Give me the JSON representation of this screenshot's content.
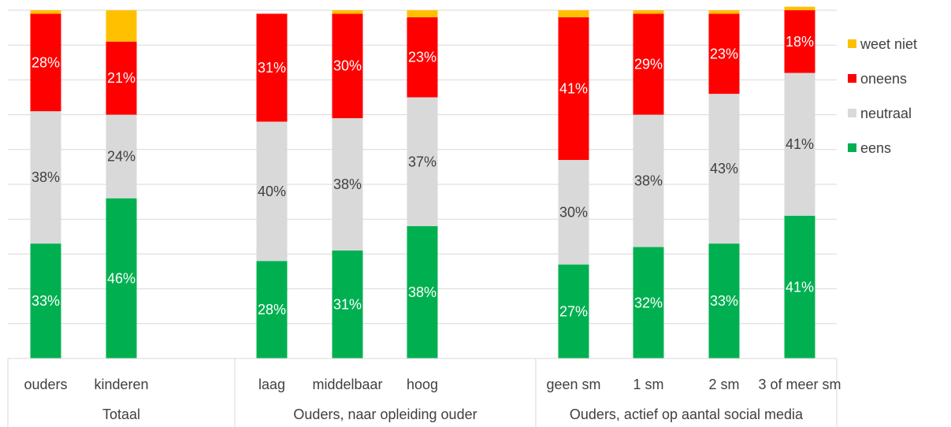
{
  "chart_data": {
    "type": "stacked-bar",
    "orientation": "vertical",
    "stacking": "percent",
    "gridlines": true,
    "legend_position": "right",
    "groups": [
      {
        "label": "Totaal",
        "categories": [
          "ouders",
          "kinderen"
        ]
      },
      {
        "label": "Ouders, naar opleiding ouder",
        "categories": [
          "laag",
          "middelbaar",
          "hoog"
        ]
      },
      {
        "label": "Ouders, actief op aantal social media",
        "categories": [
          "geen sm",
          "1 sm",
          "2 sm",
          "3 of meer sm"
        ]
      }
    ],
    "categories": [
      "ouders",
      "kinderen",
      "laag",
      "middelbaar",
      "hoog",
      "geen sm",
      "1 sm",
      "2 sm",
      "3 of meer sm"
    ],
    "series": [
      {
        "name": "eens",
        "color": "#00b050",
        "label_color": "#ffffff",
        "values": [
          33,
          46,
          28,
          31,
          38,
          27,
          32,
          33,
          41
        ]
      },
      {
        "name": "neutraal",
        "color": "#d9d9d9",
        "label_color": "#404040",
        "values": [
          38,
          24,
          40,
          38,
          37,
          30,
          38,
          43,
          41
        ]
      },
      {
        "name": "oneens",
        "color": "#ff0000",
        "label_color": "#ffffff",
        "values": [
          28,
          21,
          31,
          30,
          23,
          41,
          29,
          23,
          18
        ]
      },
      {
        "name": "weet niet",
        "color": "#ffc000",
        "label_color": "#404040",
        "values": [
          1,
          9,
          0,
          1,
          2,
          2,
          1,
          1,
          1
        ]
      }
    ],
    "labels": {
      "eens": [
        "33%",
        "46%",
        "28%",
        "31%",
        "38%",
        "27%",
        "32%",
        "33%",
        "41%"
      ],
      "neutraal": [
        "38%",
        "24%",
        "40%",
        "38%",
        "37%",
        "30%",
        "38%",
        "43%",
        "41%"
      ],
      "oneens": [
        "28%",
        "21%",
        "31%",
        "30%",
        "23%",
        "41%",
        "29%",
        "23%",
        "18%"
      ]
    },
    "legend_order": [
      "weet niet",
      "oneens",
      "neutraal",
      "eens"
    ],
    "ylim": [
      0,
      100
    ]
  }
}
